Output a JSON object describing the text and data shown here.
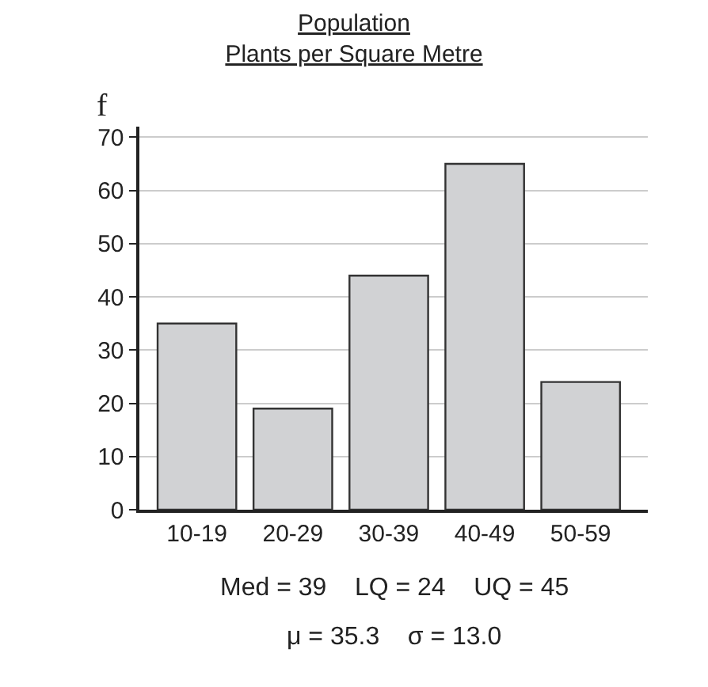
{
  "chart_data": {
    "type": "bar",
    "title": "Population\nPlants per Square Metre",
    "ylabel": "f",
    "categories": [
      "10-19",
      "20-29",
      "30-39",
      "40-49",
      "50-59"
    ],
    "values": [
      35,
      19,
      44,
      65,
      24
    ],
    "color": "#d1d2d4",
    "ylim": [
      0,
      72
    ],
    "yticks": [
      0,
      10,
      20,
      30,
      40,
      50,
      60,
      70
    ],
    "grid": "y",
    "annotations": [
      "Med = 39    LQ = 24    UQ = 45",
      "μ = 35.3    σ = 13.0"
    ]
  }
}
